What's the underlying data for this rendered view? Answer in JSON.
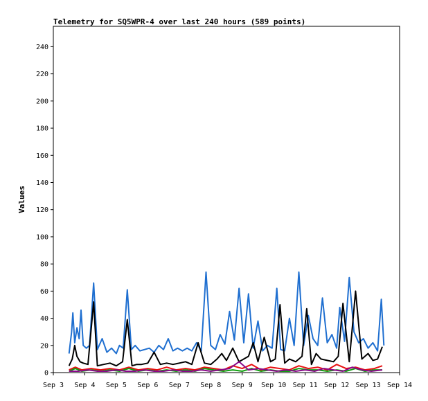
{
  "chart_data": {
    "type": "line",
    "title": "Telemetry for SQ5WPR-4 over last 240 hours (589 points)",
    "xlabel": "",
    "ylabel": "Values",
    "xlim": [
      "Sep 3",
      "Sep 14"
    ],
    "ylim": [
      0,
      255
    ],
    "x_ticks": [
      "Sep 3",
      "Sep 4",
      "Sep 5",
      "Sep 6",
      "Sep 7",
      "Sep 8",
      "Sep 9",
      "Sep 10",
      "Sep 11",
      "Sep 12",
      "Sep 13",
      "Sep 14"
    ],
    "y_ticks": [
      0,
      20,
      40,
      60,
      80,
      100,
      120,
      140,
      160,
      180,
      200,
      220,
      240
    ],
    "grid": false,
    "legend": "none",
    "series": [
      {
        "color": "#1f6fd0",
        "x": [
          3.5,
          3.58,
          3.62,
          3.68,
          3.75,
          3.82,
          3.88,
          3.95,
          4.05,
          4.15,
          4.28,
          4.4,
          4.55,
          4.7,
          4.85,
          5.0,
          5.1,
          5.22,
          5.35,
          5.48,
          5.6,
          5.75,
          5.9,
          6.05,
          6.2,
          6.35,
          6.5,
          6.65,
          6.8,
          6.95,
          7.1,
          7.25,
          7.4,
          7.55,
          7.7,
          7.85,
          8.0,
          8.15,
          8.3,
          8.45,
          8.6,
          8.75,
          8.9,
          9.05,
          9.2,
          9.35,
          9.5,
          9.65,
          9.8,
          9.95,
          10.1,
          10.22,
          10.35,
          10.5,
          10.65,
          10.8,
          10.95,
          11.1,
          11.25,
          11.4,
          11.55,
          11.7,
          11.85,
          12.0,
          12.1,
          12.25,
          12.4,
          12.55,
          12.7,
          12.85,
          13.0,
          13.15,
          13.3,
          13.42,
          13.5
        ],
        "y": [
          14,
          30,
          44,
          22,
          33,
          25,
          46,
          20,
          18,
          20,
          66,
          17,
          25,
          15,
          18,
          14,
          20,
          18,
          61,
          17,
          20,
          16,
          17,
          18,
          15,
          20,
          17,
          25,
          16,
          18,
          16,
          18,
          16,
          22,
          16,
          74,
          20,
          17,
          28,
          21,
          45,
          24,
          62,
          22,
          58,
          18,
          38,
          16,
          20,
          18,
          62,
          17,
          16,
          40,
          20,
          74,
          20,
          42,
          25,
          20,
          55,
          22,
          28,
          18,
          48,
          23,
          70,
          30,
          22,
          25,
          18,
          22,
          16,
          54,
          20
        ]
      },
      {
        "color": "#000000",
        "x": [
          3.5,
          3.6,
          3.68,
          3.75,
          3.85,
          3.95,
          4.1,
          4.28,
          4.4,
          4.6,
          4.8,
          5.0,
          5.2,
          5.35,
          5.5,
          5.65,
          5.8,
          6.0,
          6.2,
          6.4,
          6.6,
          6.8,
          7.0,
          7.2,
          7.4,
          7.6,
          7.8,
          8.0,
          8.2,
          8.35,
          8.5,
          8.7,
          8.9,
          9.05,
          9.2,
          9.35,
          9.5,
          9.7,
          9.9,
          10.05,
          10.2,
          10.35,
          10.5,
          10.7,
          10.9,
          11.05,
          11.2,
          11.35,
          11.5,
          11.7,
          11.9,
          12.05,
          12.2,
          12.4,
          12.6,
          12.8,
          13.0,
          13.15,
          13.3,
          13.45
        ],
        "y": [
          5,
          10,
          20,
          12,
          8,
          7,
          6,
          52,
          5,
          6,
          7,
          5,
          8,
          39,
          5,
          6,
          6,
          7,
          15,
          6,
          7,
          6,
          7,
          8,
          6,
          22,
          7,
          6,
          10,
          14,
          9,
          18,
          8,
          10,
          12,
          22,
          8,
          26,
          8,
          10,
          50,
          7,
          10,
          8,
          12,
          47,
          6,
          14,
          10,
          9,
          8,
          12,
          51,
          8,
          60,
          10,
          14,
          9,
          10,
          19
        ]
      },
      {
        "color": "#e81010",
        "x": [
          3.5,
          3.7,
          3.9,
          4.2,
          4.5,
          4.8,
          5.1,
          5.4,
          5.7,
          6.0,
          6.3,
          6.6,
          6.9,
          7.2,
          7.5,
          7.8,
          8.1,
          8.4,
          8.7,
          9.0,
          9.3,
          9.6,
          9.9,
          10.2,
          10.5,
          10.8,
          11.1,
          11.4,
          11.7,
          12.0,
          12.3,
          12.6,
          12.9,
          13.2,
          13.45
        ],
        "y": [
          2,
          4,
          2,
          3,
          2,
          3,
          2,
          4,
          2,
          3,
          2,
          4,
          2,
          3,
          2,
          4,
          3,
          2,
          5,
          3,
          6,
          2,
          4,
          3,
          2,
          5,
          3,
          4,
          2,
          6,
          3,
          4,
          2,
          3,
          5
        ]
      },
      {
        "color": "#10a010",
        "x": [
          3.5,
          3.7,
          3.9,
          4.2,
          4.5,
          4.8,
          5.1,
          5.4,
          5.7,
          6.0,
          6.3,
          6.6,
          6.9,
          7.2,
          7.5,
          7.8,
          8.1,
          8.4,
          8.7,
          9.0,
          9.3,
          9.6,
          9.9,
          10.2,
          10.5,
          10.8,
          11.1,
          11.4,
          11.7,
          12.0,
          12.3,
          12.6,
          12.9,
          13.2,
          13.45
        ],
        "y": [
          1,
          3,
          1,
          2,
          1,
          2,
          1,
          3,
          1,
          2,
          1,
          2,
          1,
          2,
          1,
          3,
          2,
          1,
          2,
          1,
          3,
          1,
          2,
          1,
          1,
          3,
          2,
          2,
          1,
          2,
          1,
          3,
          1,
          2,
          2
        ]
      },
      {
        "color": "#8a0a8a",
        "x": [
          3.5,
          3.8,
          4.1,
          4.4,
          4.7,
          5.0,
          5.3,
          5.6,
          5.9,
          6.2,
          6.5,
          6.8,
          7.1,
          7.4,
          7.7,
          8.0,
          8.3,
          8.6,
          8.9,
          9.2,
          9.5,
          9.8,
          10.1,
          10.4,
          10.7,
          11.0,
          11.3,
          11.6,
          11.9,
          12.2,
          12.5,
          12.8,
          13.1,
          13.45
        ],
        "y": [
          1,
          1,
          2,
          1,
          1,
          2,
          1,
          1,
          2,
          1,
          1,
          2,
          1,
          1,
          2,
          1,
          2,
          3,
          8,
          2,
          3,
          2,
          1,
          2,
          1,
          2,
          1,
          3,
          2,
          1,
          4,
          2,
          1,
          2
        ]
      }
    ]
  }
}
